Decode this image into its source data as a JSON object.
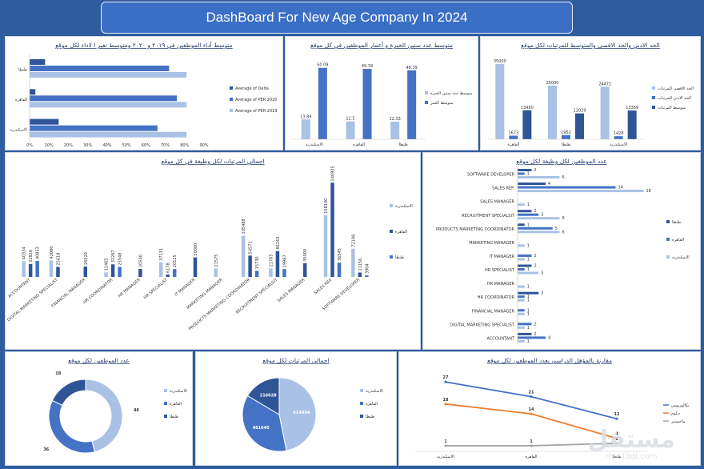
{
  "page": {
    "title": "DashBoard For New Age Company In 2024"
  },
  "colors": {
    "dark": "#2f5597",
    "mid": "#4472c4",
    "light": "#a9c1e4",
    "orange": "#ed7d31",
    "gray": "#a5a5a5"
  },
  "watermark": {
    "arabic": "مستقل",
    "latin": "mostaql.com"
  },
  "chart_data": [
    {
      "id": "perf",
      "type": "bar",
      "orientation": "horizontal",
      "title": "متوسط أداء الموظفين في ٢٠١٩ و ٢٠٢٠ ومتوسط تغير ا لاداء لكل موقع",
      "categories": [
        "طنطا",
        "القاهرة",
        "الاسكندرية"
      ],
      "series": [
        {
          "name": "Average of Delta",
          "values": [
            8,
            3,
            15
          ]
        },
        {
          "name": "Average of PER 2020",
          "values": [
            72,
            76,
            66
          ]
        },
        {
          "name": "Average of PER 2019",
          "values": [
            81,
            81,
            81
          ]
        }
      ],
      "xticks": [
        "0%",
        "10%",
        "20%",
        "30%",
        "40%",
        "50%",
        "60%",
        "70%",
        "80%",
        "90%"
      ],
      "xlim": [
        0,
        90
      ]
    },
    {
      "id": "exp",
      "type": "bar",
      "title": "متوسط عدد سنين الخبرة و أعمار الموظفين في كل موقع",
      "categories": [
        "الاسكندرية",
        "القاهرة",
        "طنطا"
      ],
      "series": [
        {
          "name": "متوسط عدد سنين الخبرة",
          "values": [
            13.89,
            12.5,
            12.33
          ]
        },
        {
          "name": "متوسط العمر",
          "values": [
            50.09,
            49.39,
            48.39
          ]
        }
      ],
      "ylim": [
        0,
        55
      ]
    },
    {
      "id": "sal",
      "type": "bar",
      "title": "الحد الادني والحد الاقصى والمتوسط للمرتبات لكل موقع",
      "categories": [
        "القاهرة",
        "طنطا",
        "الاسكندرية"
      ],
      "series": [
        {
          "name": "الحد الاقصى للمرتبات",
          "values": [
            35000,
            25000,
            24472
          ]
        },
        {
          "name": "الحد الادني للمرتبات",
          "values": [
            1673,
            1952,
            1428
          ]
        },
        {
          "name": "متوسط المرتبات",
          "values": [
            13490,
            12029,
            13369
          ]
        }
      ],
      "ylim": [
        0,
        38000
      ]
    },
    {
      "id": "jobsal",
      "type": "bar",
      "title": "اجمالي المرتبات لكل وظيفة في كل موقع",
      "categories": [
        "ACCOUNTANT",
        "DIGITAL MARKETING SPECIALIST",
        "FINANCIAL MANAGER",
        "HR COORDINATOR",
        "HR MANAGER",
        "HR SPECIALIST",
        "IT MANAGER",
        "MARKETING MANAGER",
        "PRODUCTS MARKETING COORDINATOR",
        "RECRUITMENT SPECIALSIT",
        "SALES MANAGER",
        "SALES REP.",
        "SOFTWARE DEVELOPER"
      ],
      "series": [
        {
          "name": "الاسكندرية",
          "values": [
            40334,
            42080,
            null,
            11465,
            null,
            37131,
            null,
            21575,
            105488,
            21765,
            null,
            158100,
            72108
          ]
        },
        {
          "name": "القاهرة",
          "values": [
            32820,
            25618,
            26520,
            32267,
            20500,
            6178,
            50000,
            null,
            54571,
            66243,
            35000,
            240925,
            11156
          ]
        },
        {
          "name": "طنطا",
          "values": [
            40853,
            null,
            null,
            25548,
            null,
            20125,
            null,
            null,
            15730,
            19987,
            null,
            36545,
            3904
          ]
        }
      ],
      "ylim": [
        0,
        260000
      ]
    },
    {
      "id": "jobcount",
      "type": "bar",
      "orientation": "horizontal",
      "title": "عدد الموظفين لكل وظيفة لكل موقع",
      "categories": [
        "SOFTWARE DEVELOPER",
        "SALES REP.",
        "SALES MANAGER",
        "RECRUITMENT SPECIALSIT",
        "PRODUCTS MARKETING COORDINATOR",
        "MARKETING MANAGER",
        "IT MANAGER",
        "HR SPECIALIST",
        "HR MANAGER",
        "HR COORDINATOR",
        "FINANCIAL MANAGER",
        "DIGITAL MARKETING SPECIALIST",
        "ACCOUNTANT"
      ],
      "series": [
        {
          "name": "طنطا",
          "values": [
            2,
            4,
            null,
            2,
            1,
            null,
            null,
            2,
            null,
            3,
            null,
            null,
            2
          ]
        },
        {
          "name": "القاهرة",
          "values": [
            1,
            14,
            null,
            3,
            5,
            null,
            2,
            1,
            null,
            1,
            1,
            2,
            4
          ]
        },
        {
          "name": "الاسكندرية",
          "values": [
            6,
            18,
            1,
            6,
            6,
            1,
            1,
            3,
            1,
            1,
            1,
            1,
            1
          ]
        }
      ],
      "xlim": [
        0,
        20
      ]
    },
    {
      "id": "empdonut",
      "type": "pie",
      "title": "عدد الموظفين لكل موقع",
      "labels": [
        "الاسكندرية",
        "القاهرة",
        "طنطا"
      ],
      "values": [
        46,
        36,
        18
      ]
    },
    {
      "id": "salpie",
      "type": "pie",
      "title": "اجمالي المرتبات لكل موقع",
      "labels": [
        "الاسكندرية",
        "القاهرة",
        "طنطا"
      ],
      "values": [
        614994,
        481640,
        216028
      ]
    },
    {
      "id": "edu",
      "type": "line",
      "title": "مقارنة بالمؤهل الدراسي بعدد الموظفين لكل موقع",
      "categories": [
        "الاسكندرية",
        "القاهرة",
        "طنطا"
      ],
      "series": [
        {
          "name": "بكالوريوس",
          "values": [
            27,
            21,
            12
          ]
        },
        {
          "name": "دبلوم",
          "values": [
            18,
            14,
            4
          ]
        },
        {
          "name": "ماجستير",
          "values": [
            1,
            1,
            2
          ]
        }
      ],
      "ylim": [
        0,
        30
      ]
    }
  ]
}
